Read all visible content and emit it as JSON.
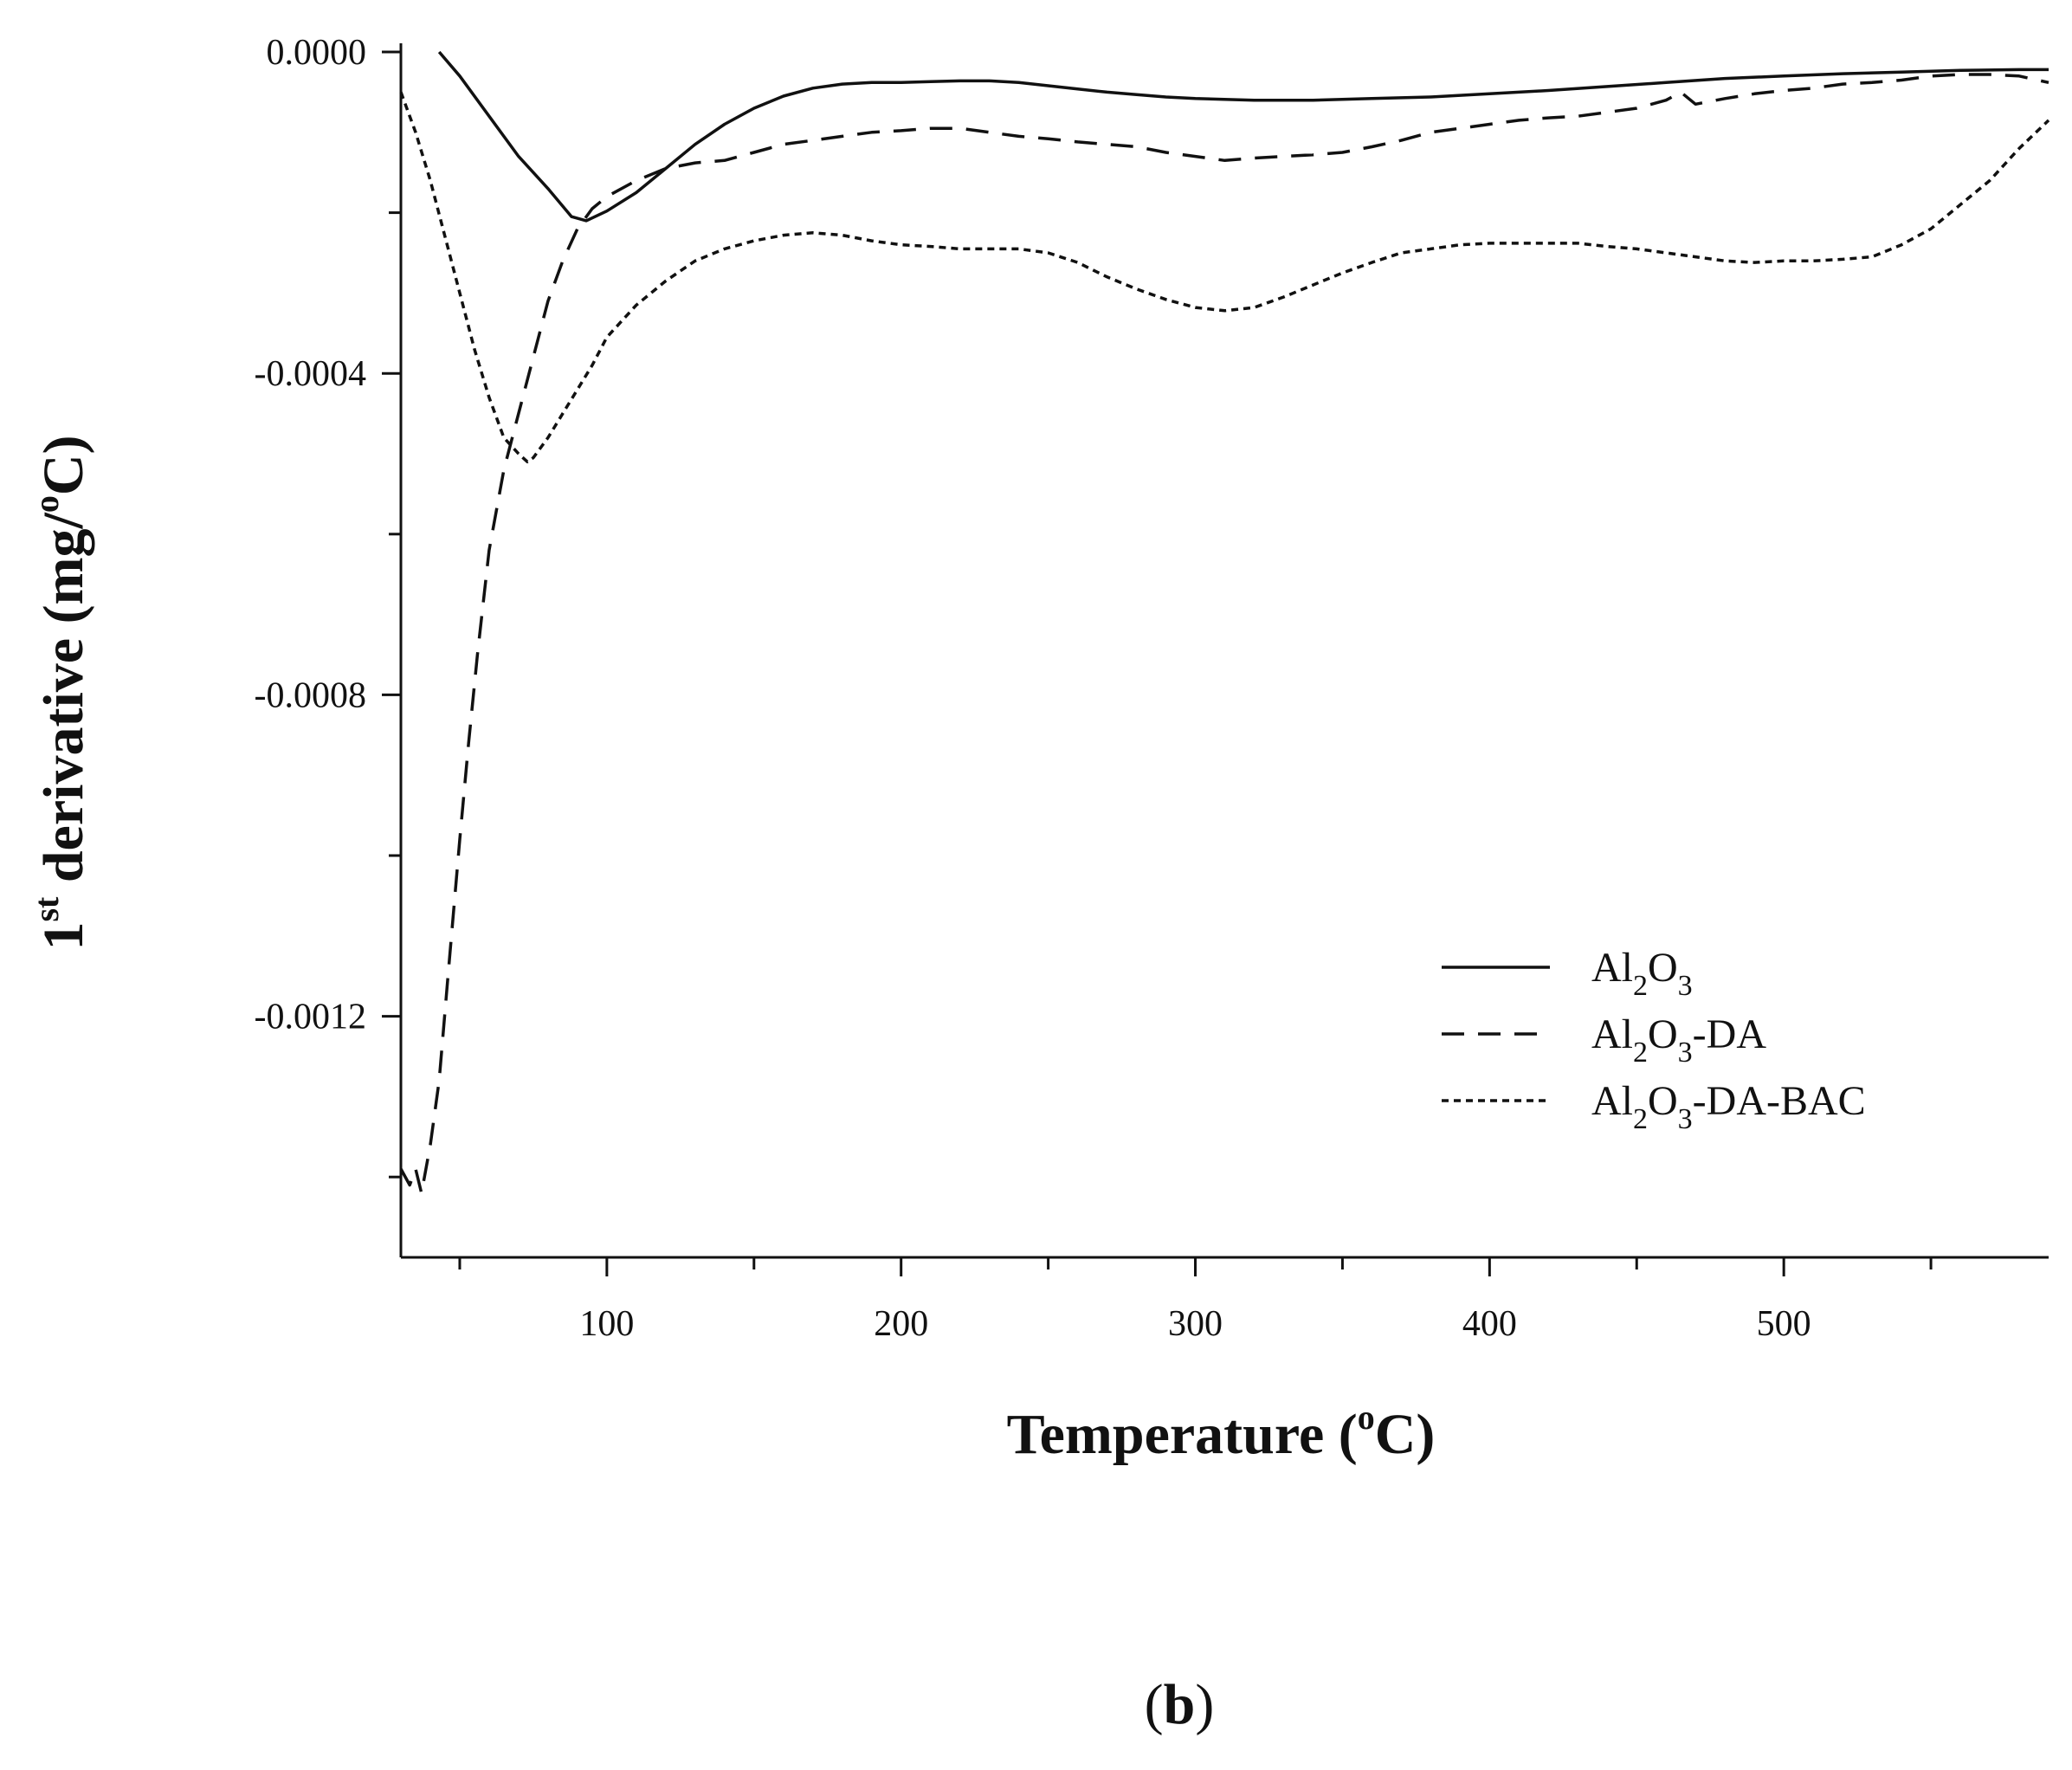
{
  "chart_data": {
    "type": "line",
    "title": "",
    "xlabel": {
      "main": "Temperature (",
      "sup": "o",
      "tail": "C)"
    },
    "ylabel": {
      "lead": "1",
      "sup": "st",
      "main": " derivative (mg/",
      "sup2": "o",
      "tail": "C)"
    },
    "xlim": [
      30,
      590
    ],
    "ylim": [
      -0.0015,
      0.0
    ],
    "x_ticks": [
      100,
      200,
      300,
      400,
      500
    ],
    "x_tick_labels": [
      "100",
      "200",
      "300",
      "400",
      "500"
    ],
    "x_minor_ticks": [
      50,
      150,
      250,
      350,
      450,
      550
    ],
    "y_ticks": [
      0.0,
      -0.0004,
      -0.0008,
      -0.0012
    ],
    "y_tick_labels": [
      "0.0000",
      "-0.0004",
      "-0.0008",
      "-0.0012"
    ],
    "grid": false,
    "legend_position": "bottom-right",
    "series": [
      {
        "name_parts": [
          "Al",
          "2",
          "O",
          "3",
          ""
        ],
        "style": "solid",
        "x": [
          43,
          50,
          60,
          70,
          80,
          88,
          93,
          100,
          110,
          120,
          130,
          140,
          150,
          160,
          170,
          180,
          190,
          200,
          210,
          220,
          230,
          240,
          250,
          260,
          270,
          280,
          290,
          300,
          320,
          340,
          360,
          380,
          400,
          420,
          440,
          460,
          480,
          500,
          520,
          540,
          560,
          580,
          590
        ],
        "y": [
          0.0,
          -3e-05,
          -8e-05,
          -0.00013,
          -0.00017,
          -0.000205,
          -0.00021,
          -0.000198,
          -0.000175,
          -0.000145,
          -0.000115,
          -9e-05,
          -7e-05,
          -5.5e-05,
          -4.5e-05,
          -4e-05,
          -3.8e-05,
          -3.8e-05,
          -3.7e-05,
          -3.6e-05,
          -3.6e-05,
          -3.8e-05,
          -4.2e-05,
          -4.6e-05,
          -5e-05,
          -5.3e-05,
          -5.6e-05,
          -5.8e-05,
          -6e-05,
          -6e-05,
          -5.8e-05,
          -5.6e-05,
          -5.2e-05,
          -4.8e-05,
          -4.3e-05,
          -3.8e-05,
          -3.3e-05,
          -3e-05,
          -2.7e-05,
          -2.5e-05,
          -2.3e-05,
          -2.2e-05,
          -2.2e-05
        ]
      },
      {
        "name_parts": [
          "Al",
          "2",
          "O",
          "3",
          "-DA"
        ],
        "style": "dashed",
        "x": [
          30,
          33,
          35,
          37,
          40,
          43,
          46,
          50,
          53,
          56,
          60,
          65,
          70,
          75,
          80,
          85,
          90,
          95,
          100,
          110,
          120,
          130,
          140,
          150,
          160,
          170,
          180,
          190,
          200,
          210,
          220,
          230,
          240,
          250,
          260,
          270,
          280,
          290,
          300,
          310,
          320,
          330,
          340,
          350,
          360,
          370,
          380,
          390,
          400,
          410,
          420,
          430,
          440,
          450,
          460,
          465,
          470,
          480,
          490,
          500,
          510,
          520,
          530,
          540,
          550,
          560,
          570,
          580,
          590
        ],
        "y": [
          -0.00139,
          -0.00141,
          -0.00139,
          -0.00142,
          -0.00136,
          -0.00128,
          -0.00115,
          -0.00098,
          -0.00086,
          -0.00075,
          -0.00062,
          -0.00052,
          -0.00045,
          -0.00038,
          -0.00031,
          -0.00026,
          -0.00022,
          -0.000195,
          -0.00018,
          -0.00016,
          -0.000145,
          -0.000138,
          -0.000135,
          -0.000125,
          -0.000115,
          -0.00011,
          -0.000105,
          -0.0001,
          -9.8e-05,
          -9.5e-05,
          -9.5e-05,
          -0.0001,
          -0.000105,
          -0.000108,
          -0.000112,
          -0.000115,
          -0.000118,
          -0.000125,
          -0.00013,
          -0.000135,
          -0.000132,
          -0.00013,
          -0.000128,
          -0.000125,
          -0.000118,
          -0.00011,
          -0.0001,
          -9.5e-05,
          -9e-05,
          -8.5e-05,
          -8.2e-05,
          -8e-05,
          -7.5e-05,
          -7e-05,
          -6e-05,
          -5e-05,
          -6.5e-05,
          -5.8e-05,
          -5.2e-05,
          -4.8e-05,
          -4.5e-05,
          -4e-05,
          -3.8e-05,
          -3.5e-05,
          -3e-05,
          -2.8e-05,
          -2.8e-05,
          -3e-05,
          -3.8e-05
        ]
      },
      {
        "name_parts": [
          "Al",
          "2",
          "O",
          "3",
          "-DA-BAC"
        ],
        "style": "dotted",
        "x": [
          30,
          35,
          40,
          45,
          50,
          55,
          60,
          65,
          70,
          73,
          75,
          80,
          85,
          90,
          95,
          100,
          110,
          120,
          130,
          140,
          150,
          160,
          170,
          180,
          190,
          200,
          210,
          220,
          230,
          240,
          250,
          260,
          270,
          280,
          290,
          300,
          310,
          320,
          330,
          340,
          350,
          360,
          370,
          380,
          390,
          400,
          410,
          420,
          430,
          440,
          450,
          460,
          470,
          480,
          490,
          500,
          510,
          520,
          530,
          540,
          550,
          560,
          570,
          580,
          590
        ],
        "y": [
          -5e-05,
          -0.0001,
          -0.00016,
          -0.00023,
          -0.0003,
          -0.00037,
          -0.00043,
          -0.00048,
          -0.0005,
          -0.00051,
          -0.000505,
          -0.00048,
          -0.00045,
          -0.00042,
          -0.00039,
          -0.000355,
          -0.000315,
          -0.000285,
          -0.00026,
          -0.000245,
          -0.000235,
          -0.000228,
          -0.000225,
          -0.000228,
          -0.000235,
          -0.00024,
          -0.000242,
          -0.000245,
          -0.000245,
          -0.000245,
          -0.00025,
          -0.000262,
          -0.00028,
          -0.000295,
          -0.000308,
          -0.000318,
          -0.000322,
          -0.000318,
          -0.000305,
          -0.00029,
          -0.000275,
          -0.000262,
          -0.00025,
          -0.000245,
          -0.00024,
          -0.000238,
          -0.000238,
          -0.000238,
          -0.000238,
          -0.000242,
          -0.000245,
          -0.00025,
          -0.000255,
          -0.00026,
          -0.000262,
          -0.00026,
          -0.00026,
          -0.000258,
          -0.000255,
          -0.00024,
          -0.00022,
          -0.00019,
          -0.00016,
          -0.00012,
          -8.5e-05
        ]
      }
    ]
  },
  "caption": {
    "open": "(",
    "label": "b",
    "close": ")"
  }
}
